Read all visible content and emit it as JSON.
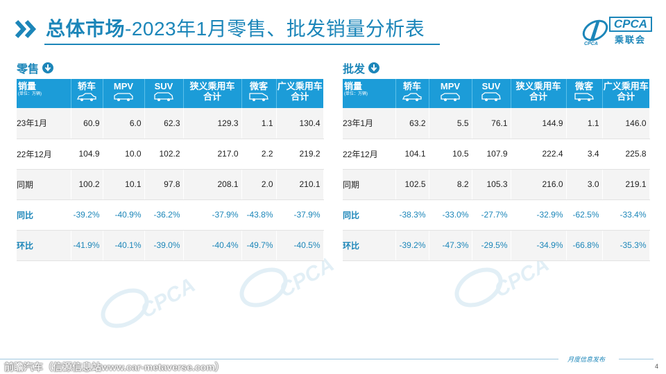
{
  "title": {
    "strong": "总体市场",
    "rest": "-2023年1月零售、批发销量分析表"
  },
  "logo": {
    "text_main": "CPCA",
    "text_cn": "乘联会",
    "text_en": "CPCA"
  },
  "columns": {
    "first_main": "销量",
    "first_sub": "(单位：万辆)",
    "sedan": "轿车",
    "mpv": "MPV",
    "suv": "SUV",
    "narrow_total_line1": "狭义乘用车",
    "narrow_total_line2": "合计",
    "mini": "微客",
    "broad_total_line1": "广义乘用车",
    "broad_total_line2": "合计"
  },
  "retail": {
    "label": "零售",
    "rows": [
      {
        "label": "23年1月",
        "sedan": "60.9",
        "mpv": "6.0",
        "suv": "62.3",
        "narrow": "129.3",
        "mini": "1.1",
        "broad": "130.4"
      },
      {
        "label": "22年12月",
        "sedan": "104.9",
        "mpv": "10.0",
        "suv": "102.2",
        "narrow": "217.0",
        "mini": "2.2",
        "broad": "219.2"
      },
      {
        "label": "同期",
        "sedan": "100.2",
        "mpv": "10.1",
        "suv": "97.8",
        "narrow": "208.1",
        "mini": "2.0",
        "broad": "210.1"
      },
      {
        "label": "同比",
        "sedan": "-39.2%",
        "mpv": "-40.9%",
        "suv": "-36.2%",
        "narrow": "-37.9%",
        "mini": "-43.8%",
        "broad": "-37.9%"
      },
      {
        "label": "环比",
        "sedan": "-41.9%",
        "mpv": "-40.1%",
        "suv": "-39.0%",
        "narrow": "-40.4%",
        "mini": "-49.7%",
        "broad": "-40.5%"
      }
    ]
  },
  "wholesale": {
    "label": "批发",
    "rows": [
      {
        "label": "23年1月",
        "sedan": "63.2",
        "mpv": "5.5",
        "suv": "76.1",
        "narrow": "144.9",
        "mini": "1.1",
        "broad": "146.0"
      },
      {
        "label": "22年12月",
        "sedan": "104.1",
        "mpv": "10.5",
        "suv": "107.9",
        "narrow": "222.4",
        "mini": "3.4",
        "broad": "225.8"
      },
      {
        "label": "同期",
        "sedan": "102.5",
        "mpv": "8.2",
        "suv": "105.3",
        "narrow": "216.0",
        "mini": "3.0",
        "broad": "219.1"
      },
      {
        "label": "同比",
        "sedan": "-38.3%",
        "mpv": "-33.0%",
        "suv": "-27.7%",
        "narrow": "-32.9%",
        "mini": "-62.5%",
        "broad": "-33.4%"
      },
      {
        "label": "环比",
        "sedan": "-39.2%",
        "mpv": "-47.3%",
        "suv": "-29.5%",
        "narrow": "-34.9%",
        "mini": "-66.8%",
        "broad": "-35.3%"
      }
    ]
  },
  "footer": {
    "text": "月度信息发布",
    "page": "4",
    "watermark": "前瞻汽车（信源信息站www.car-metaverse.com）"
  },
  "colors": {
    "accent": "#1c86b9",
    "header_bg": "#1c9cd8",
    "row_alt": "#f4f4f4"
  }
}
